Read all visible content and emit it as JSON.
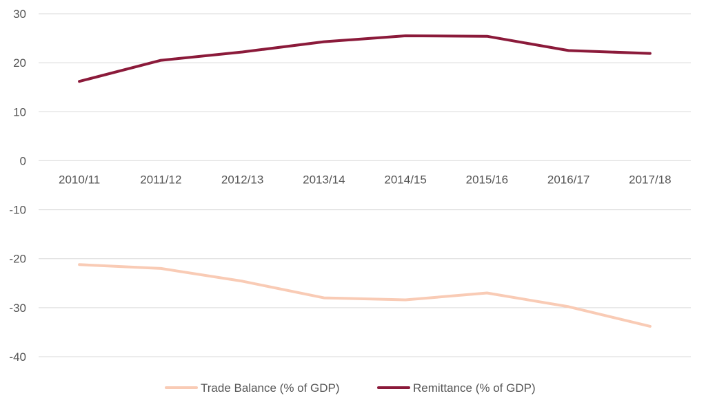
{
  "chart_data": {
    "type": "line",
    "categories": [
      "2010/11",
      "2011/12",
      "2012/13",
      "2013/14",
      "2014/15",
      "2015/16",
      "2016/17",
      "2017/18"
    ],
    "ylim": [
      -40,
      30
    ],
    "yticks": [
      30,
      20,
      10,
      0,
      -10,
      -20,
      -30,
      -40
    ],
    "grid": true,
    "legend_position": "bottom",
    "series": [
      {
        "name": "Trade Balance (% of GDP)",
        "color": "#f9cbb5",
        "values": [
          -21.2,
          -22.0,
          -24.6,
          -28.0,
          -28.4,
          -27.0,
          -29.8,
          -33.8
        ]
      },
      {
        "name": "Remittance (% of GDP)",
        "color": "#8b1a3a",
        "values": [
          16.2,
          20.5,
          22.2,
          24.3,
          25.5,
          25.4,
          22.5,
          21.9
        ]
      }
    ]
  }
}
